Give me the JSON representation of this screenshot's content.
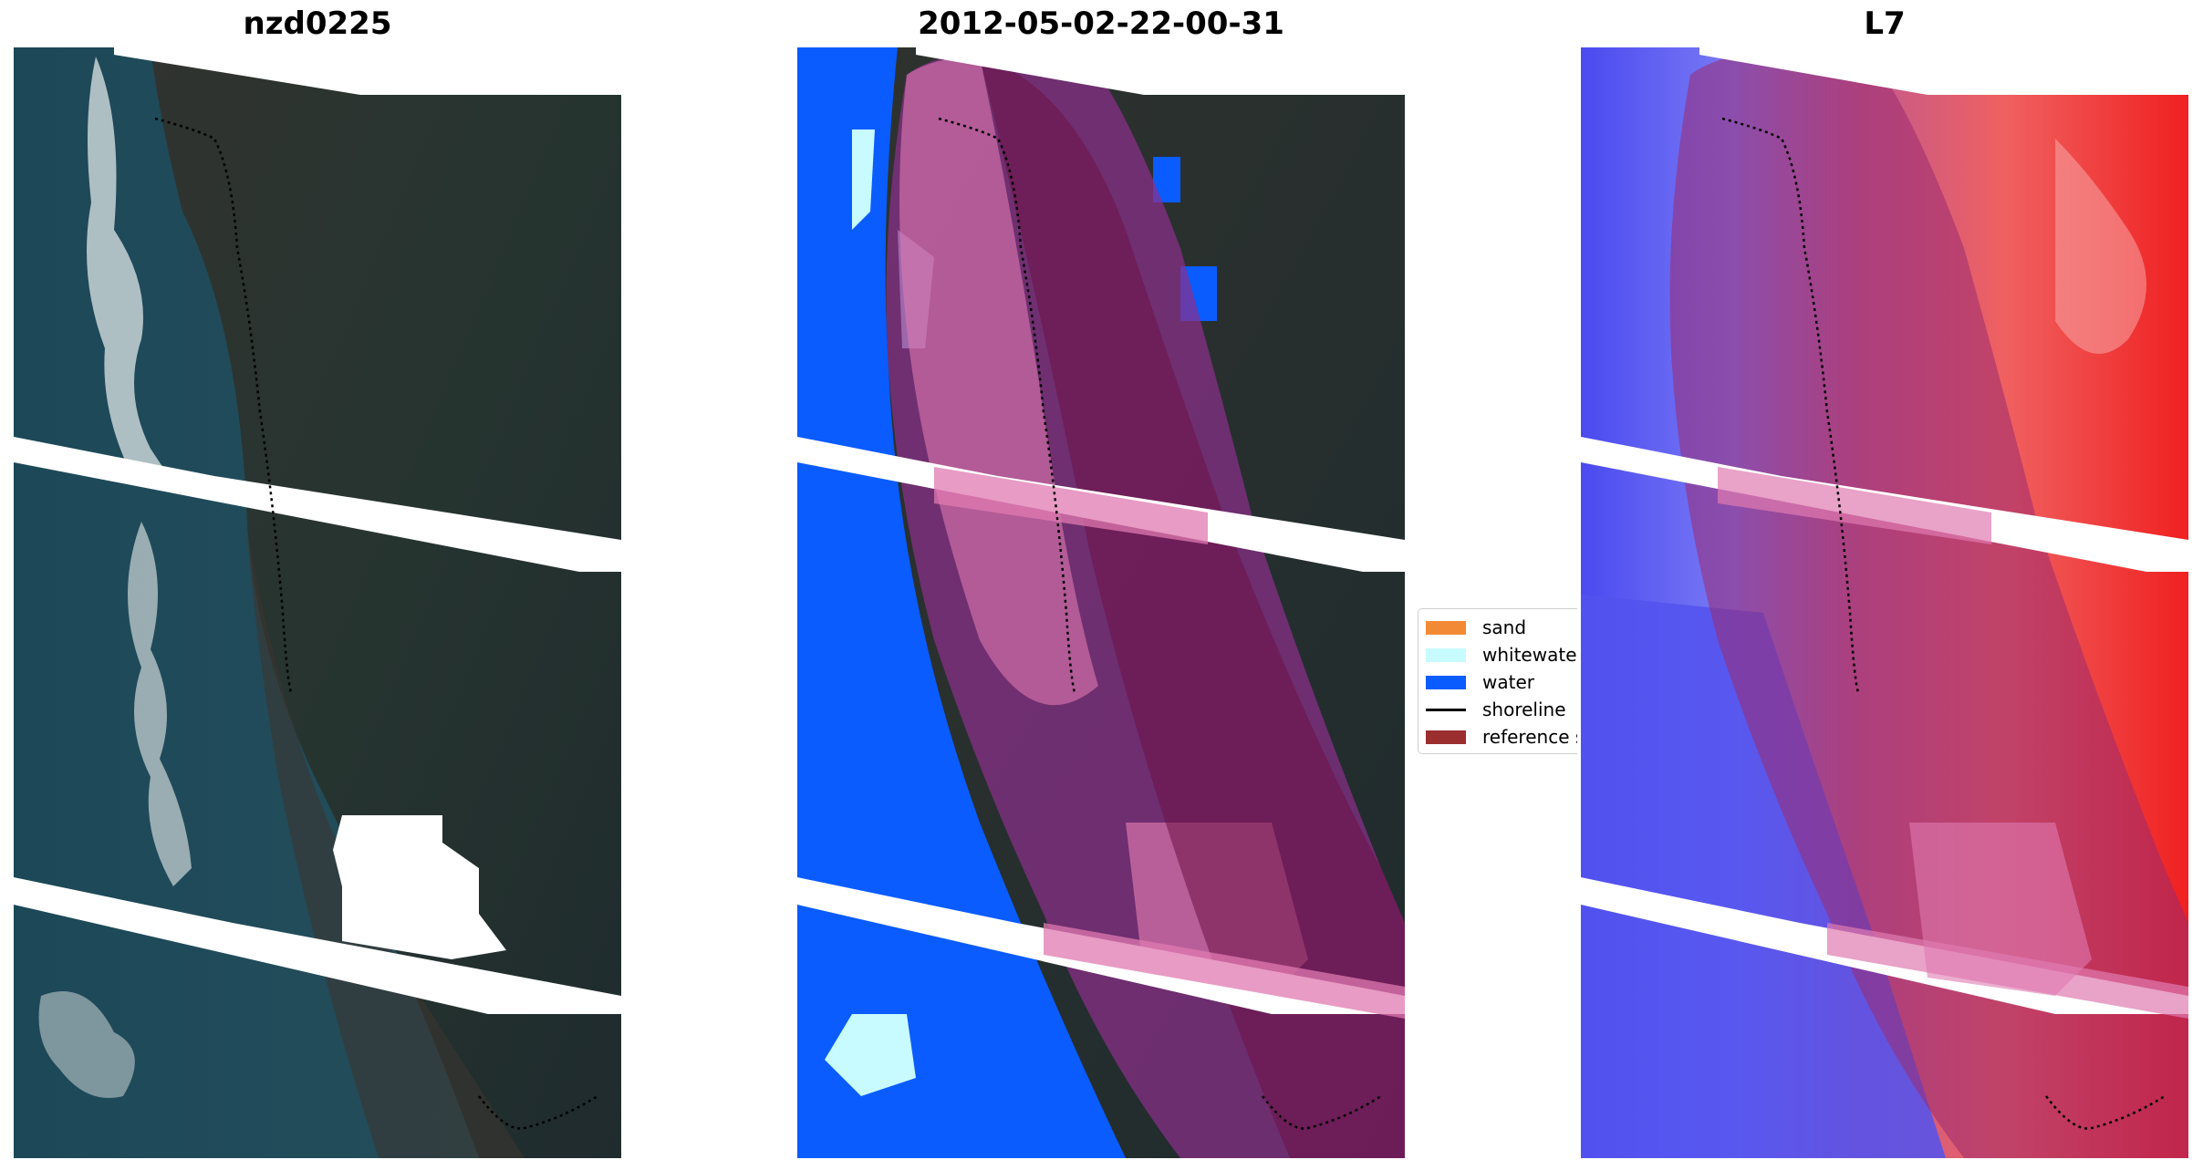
{
  "panels": [
    {
      "title": "nzd0225",
      "kind": "rgb"
    },
    {
      "title": "2012-05-02-22-00-31",
      "kind": "classified"
    },
    {
      "title": "L7",
      "kind": "index"
    }
  ],
  "legend": {
    "items": [
      {
        "label": "sand",
        "color": "#f28a35",
        "type": "patch"
      },
      {
        "label": "whitewater",
        "color": "#c8fbff",
        "type": "patch"
      },
      {
        "label": "water",
        "color": "#0a5cff",
        "type": "patch"
      },
      {
        "label": "shoreline",
        "color": "#000000",
        "type": "line"
      },
      {
        "label": "reference shoreline buffer",
        "color": "#9b2e2e",
        "type": "patch"
      }
    ]
  },
  "colors": {
    "sea_rgb": "#1e4a5a",
    "land_rgb": "#2c3230",
    "water_class": "#0a5cff",
    "buffer_overlay": "#e07ab0",
    "index_low": "#5a5af0",
    "index_high": "#f03a3a"
  }
}
